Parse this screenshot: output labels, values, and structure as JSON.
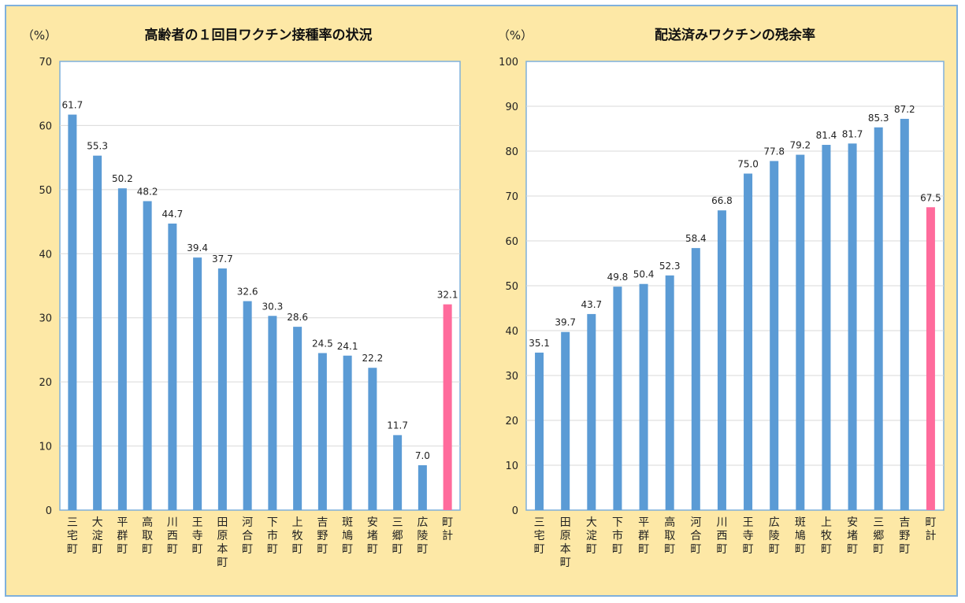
{
  "charts": [
    {
      "type": "bar",
      "title": "高齢者の１回目ワクチン接種率の状況",
      "unit_label": "（%）",
      "ylim": [
        0,
        70
      ],
      "yticks": [
        0,
        10,
        20,
        30,
        40,
        50,
        60,
        70
      ],
      "grid": true,
      "categories": [
        "三宅町",
        "大淀町",
        "平群町",
        "高取町",
        "川西町",
        "王寺町",
        "田原本町",
        "河合町",
        "下市町",
        "上牧町",
        "吉野町",
        "斑鳩町",
        "安堵町",
        "三郷町",
        "広陵町",
        "町計"
      ],
      "values": [
        61.7,
        55.3,
        50.2,
        48.2,
        44.7,
        39.4,
        37.7,
        32.6,
        30.3,
        28.6,
        24.5,
        24.1,
        22.2,
        11.7,
        7.0,
        32.1
      ],
      "value_labels": [
        "61.7",
        "55.3",
        "50.2",
        "48.2",
        "44.7",
        "39.4",
        "37.7",
        "32.6",
        "30.3",
        "28.6",
        "24.5",
        "24.1",
        "22.2",
        "11.7",
        "7.0",
        "32.1"
      ],
      "bar_color": "#5b9bd5",
      "highlight_color": "#ff6b9c",
      "highlight_category": "町計"
    },
    {
      "type": "bar",
      "title": "配送済みワクチンの残余率",
      "unit_label": "（%）",
      "ylim": [
        0,
        100
      ],
      "yticks": [
        0,
        10,
        20,
        30,
        40,
        50,
        60,
        70,
        80,
        90,
        100
      ],
      "grid": true,
      "categories": [
        "三宅町",
        "田原本町",
        "大淀町",
        "下市町",
        "平群町",
        "高取町",
        "河合町",
        "川西町",
        "王寺町",
        "広陵町",
        "斑鳩町",
        "上牧町",
        "安堵町",
        "三郷町",
        "吉野町",
        "町計"
      ],
      "values": [
        35.1,
        39.7,
        43.7,
        49.8,
        50.4,
        52.3,
        58.4,
        66.8,
        75.0,
        77.8,
        79.2,
        81.4,
        81.7,
        85.3,
        87.2,
        67.5
      ],
      "value_labels": [
        "35.1",
        "39.7",
        "43.7",
        "49.8",
        "50.4",
        "52.3",
        "58.4",
        "66.8",
        "75.0",
        "77.8",
        "79.2",
        "81.4",
        "81.7",
        "85.3",
        "87.2",
        "67.5"
      ],
      "bar_color": "#5b9bd5",
      "highlight_color": "#ff6b9c",
      "highlight_category": "町計"
    }
  ]
}
